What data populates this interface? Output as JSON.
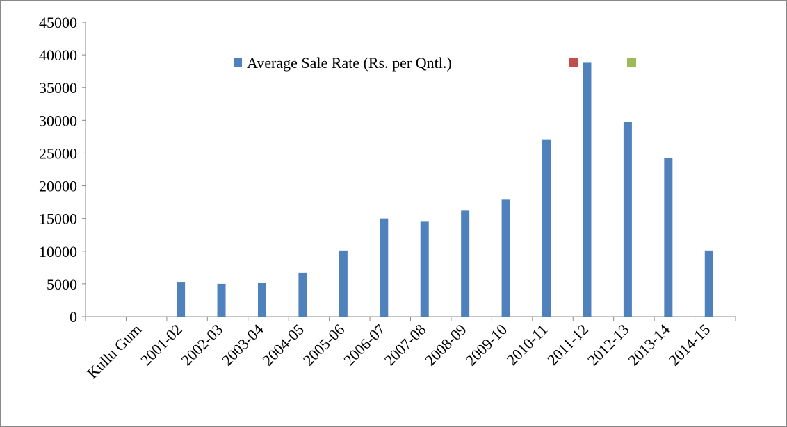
{
  "chart_data": {
    "type": "bar",
    "categories": [
      null,
      "Kullu Gum",
      "2001-02",
      "2002-03",
      "2003-04",
      "2004-05",
      "2005-06",
      "2006-07",
      "2007-08",
      "2008-09",
      "2009-10",
      "2010-11",
      "2011-12",
      "2012-13",
      "2013-14",
      "2014-15"
    ],
    "series": [
      {
        "name": "Average Sale Rate (Rs. per Qntl.)",
        "color": "#4f81bd",
        "values": [
          null,
          null,
          5300,
          5000,
          5200,
          6700,
          10100,
          15000,
          14500,
          16200,
          17900,
          27100,
          38800,
          29800,
          24200,
          10100
        ]
      }
    ],
    "ylim": [
      0,
      45000
    ],
    "yticks": [
      0,
      5000,
      10000,
      15000,
      20000,
      25000,
      30000,
      35000,
      40000,
      45000
    ]
  }
}
